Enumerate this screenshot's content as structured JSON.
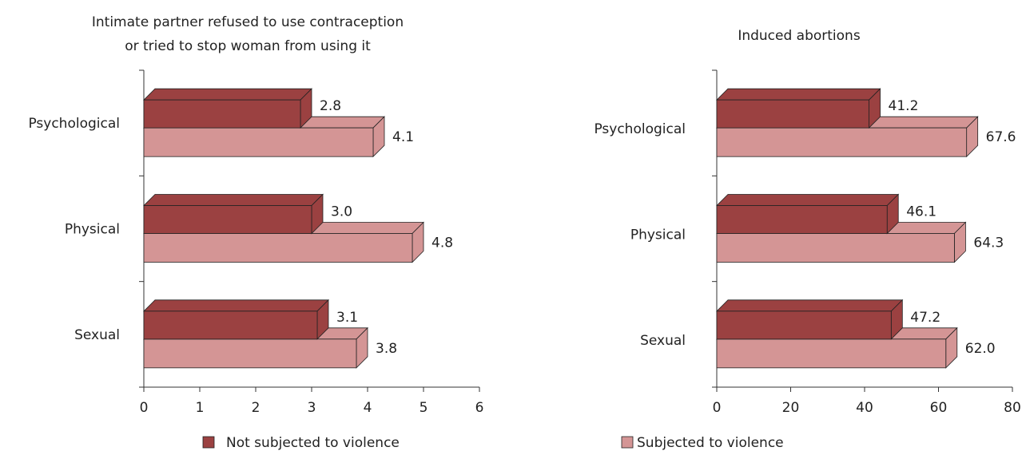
{
  "chart_data": [
    {
      "type": "bar3d",
      "orientation": "horizontal",
      "title": [
        "Intimate partner refused to use contraception",
        "or tried to stop woman from using it"
      ],
      "categories": [
        "Psychological",
        "Physical",
        "Sexual"
      ],
      "series": [
        {
          "name": "Not subjected to violence",
          "color": "#9b4141",
          "values": [
            2.8,
            3.0,
            3.1
          ],
          "value_labels": [
            "2.8",
            "3.0",
            "3.1"
          ]
        },
        {
          "name": "Subjected to violence",
          "color": "#d49595",
          "values": [
            4.1,
            4.8,
            3.8
          ],
          "value_labels": [
            "4.1",
            "4.8",
            "3.8"
          ]
        }
      ],
      "xlim": [
        0,
        6
      ],
      "xticks": [
        0,
        1,
        2,
        3,
        4,
        5,
        6
      ]
    },
    {
      "type": "bar3d",
      "orientation": "horizontal",
      "title": [
        "Induced abortions"
      ],
      "categories": [
        "Psychological",
        "Physical",
        "Sexual"
      ],
      "series": [
        {
          "color": "#9b4141",
          "values": [
            41.2,
            46.1,
            47.2
          ],
          "value_labels": [
            "41.2",
            "46.1",
            "47.2"
          ]
        },
        {
          "color": "#d49595",
          "values": [
            67.6,
            64.3,
            62.0
          ],
          "value_labels": [
            "67.6",
            "64.3",
            "62.0"
          ]
        }
      ],
      "xlim": [
        0,
        80
      ],
      "xticks": [
        0,
        20,
        40,
        60,
        80
      ]
    }
  ]
}
